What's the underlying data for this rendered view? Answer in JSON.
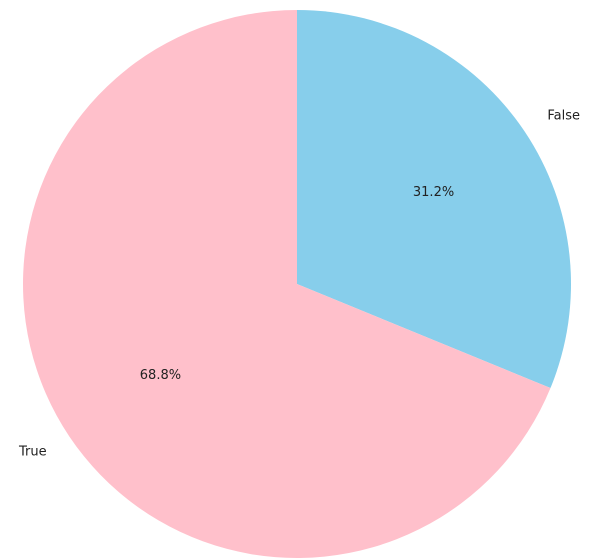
{
  "chart_data": {
    "type": "pie",
    "title": "",
    "slices": [
      {
        "label": "False",
        "value": 31.2,
        "pct_label": "31.2%",
        "color": "#87ceeb"
      },
      {
        "label": "True",
        "value": 68.8,
        "pct_label": "68.8%",
        "color": "#ffc0cb"
      }
    ],
    "start_angle_deg": 90,
    "direction": "clockwise",
    "legend": "none"
  }
}
